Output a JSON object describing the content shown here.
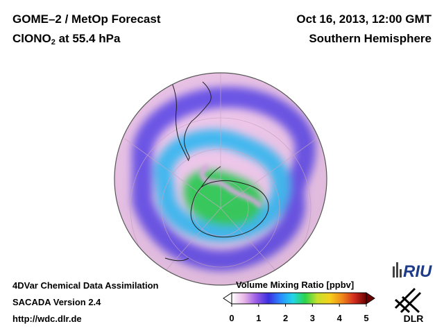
{
  "header": {
    "title_line1": "GOME–2 / MetOp Forecast",
    "species_prefix": "ClONO",
    "species_subscript": "2",
    "species_level": " at 55.4 hPa",
    "date": "Oct 16, 2013, 12:00 GMT",
    "region": "Southern Hemisphere"
  },
  "footer": {
    "line1": "4DVar Chemical Data Assimilation",
    "line2": "SACADA Version 2.4",
    "line3": "http://wdc.dlr.de"
  },
  "colorbar": {
    "title": "Volume Mixing Ratio [ppbv]",
    "ticks": [
      "0",
      "1",
      "2",
      "3",
      "4",
      "5"
    ],
    "colors": [
      "#ffffff",
      "#e9b8e6",
      "#9b5ce6",
      "#3a2fe0",
      "#2a8cff",
      "#22d6e8",
      "#2bd44a",
      "#c8e02c",
      "#f5d11c",
      "#f08a1a",
      "#d42d1e",
      "#6a0000"
    ]
  },
  "map": {
    "projection": "orthographic",
    "hemisphere": "Southern Hemisphere",
    "background_color": "#eec6ea",
    "low_color": "#6a52e8",
    "high_color": "#34c85a"
  },
  "logos": {
    "riu": "RIU",
    "dlr": "DLR"
  }
}
